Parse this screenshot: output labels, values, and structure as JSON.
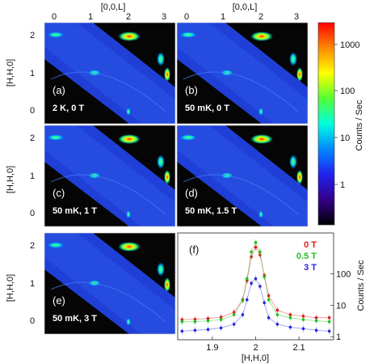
{
  "figure": {
    "top_axis_label": "[0,0,L]",
    "left_axis_label": "[H,H,0]",
    "top_ticks": [
      "0",
      "1",
      "2",
      "3"
    ],
    "left_ticks": [
      "2",
      "1",
      "0"
    ],
    "panels": [
      {
        "id": "a",
        "label": "(a)",
        "condition": "2 K, 0 T"
      },
      {
        "id": "b",
        "label": "(b)",
        "condition": "50 mK, 0 T"
      },
      {
        "id": "c",
        "label": "(c)",
        "condition": "50 mK, 1 T"
      },
      {
        "id": "d",
        "label": "(d)",
        "condition": "50 mK, 1.5 T"
      },
      {
        "id": "e",
        "label": "(e)",
        "condition": "50 mK, 3 T"
      }
    ],
    "colorbar": {
      "label": "Counts / Sec",
      "ticks": [
        "1000",
        "100",
        "10",
        "1"
      ],
      "colors": [
        "#ff0000",
        "#ff8800",
        "#ffff00",
        "#55ff33",
        "#00ffdd",
        "#0088ff",
        "#2222ee",
        "#33008a",
        "#000000"
      ]
    }
  },
  "chart_data": {
    "type": "scatter",
    "panel_label": "(f)",
    "xlabel": "[H,H,0]",
    "ylabel": "Counts / Sec",
    "xlim": [
      1.82,
      2.18
    ],
    "ylim": [
      0.8,
      2000
    ],
    "yscale": "log",
    "xticks": [
      "1.9",
      "2",
      "2.1"
    ],
    "yticks": [
      "100",
      "10",
      "1"
    ],
    "series": [
      {
        "name": "0 T",
        "color": "#e81515",
        "x": [
          1.83,
          1.86,
          1.89,
          1.92,
          1.95,
          1.97,
          1.98,
          1.99,
          2.0,
          2.01,
          2.02,
          2.03,
          2.05,
          2.08,
          2.11,
          2.14,
          2.17
        ],
        "y": [
          3.5,
          3.6,
          3.8,
          4.2,
          6,
          15,
          60,
          350,
          700,
          400,
          90,
          20,
          7,
          5,
          4.5,
          4,
          4
        ]
      },
      {
        "name": "0.5 T",
        "color": "#1ec21e",
        "x": [
          1.83,
          1.86,
          1.89,
          1.92,
          1.95,
          1.97,
          1.98,
          1.99,
          2.0,
          2.01,
          2.02,
          2.03,
          2.05,
          2.08,
          2.11,
          2.14,
          2.17
        ],
        "y": [
          3,
          3,
          3.2,
          3.5,
          5,
          14,
          70,
          500,
          1000,
          500,
          80,
          15,
          5,
          4,
          3.5,
          3.2,
          3
        ]
      },
      {
        "name": "3 T",
        "color": "#2626e0",
        "x": [
          1.83,
          1.86,
          1.89,
          1.92,
          1.95,
          1.97,
          1.98,
          1.99,
          2.0,
          2.01,
          2.02,
          2.03,
          2.05,
          2.08,
          2.11,
          2.14,
          2.17
        ],
        "y": [
          1.5,
          1.6,
          1.7,
          1.9,
          2.5,
          5,
          15,
          50,
          70,
          40,
          12,
          4,
          2.5,
          2,
          1.8,
          1.6,
          1.5
        ]
      }
    ]
  }
}
